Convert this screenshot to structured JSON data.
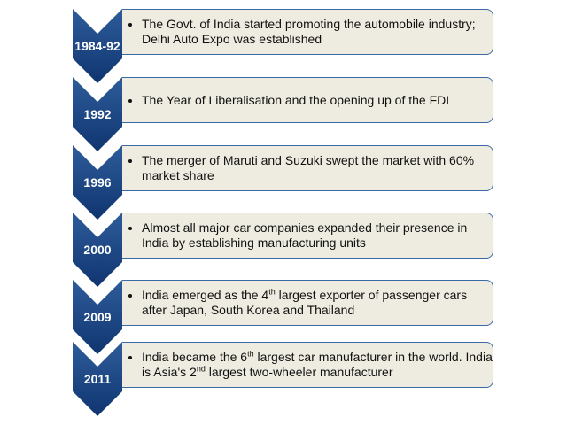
{
  "colors": {
    "chevron_top": "#2e5c9a",
    "chevron_bottom": "#0f3570",
    "box_fill": "#eeece1",
    "box_border": "#3a6aa6"
  },
  "timeline": [
    {
      "year": "1984-92",
      "lines": [
        {
          "pre": "The Govt. of India started promoting the automobile industry; Delhi Auto Expo was established"
        }
      ]
    },
    {
      "year": "1992",
      "lines": [
        {
          "pre": "The Year of Liberalisation and the opening up of the FDI"
        }
      ]
    },
    {
      "year": "1996",
      "lines": [
        {
          "pre": "The merger of Maruti and Suzuki swept the market with 60% market share"
        }
      ]
    },
    {
      "year": "2000",
      "lines": [
        {
          "pre": "Almost all major car companies expanded their presence in India by establishing manufacturing units"
        }
      ]
    },
    {
      "year": "2009",
      "lines": [
        {
          "pre": "India emerged as the 4",
          "sup": "th",
          "post": " largest exporter of passenger cars after Japan, South Korea and Thailand"
        }
      ]
    },
    {
      "year": "2011",
      "lines": [
        {
          "pre": "India became the 6",
          "sup": "th",
          "post": " largest car manufacturer in the world. India is Asia's 2",
          "sup2": "nd",
          "post2": " largest two-wheeler manufacturer"
        }
      ]
    }
  ]
}
